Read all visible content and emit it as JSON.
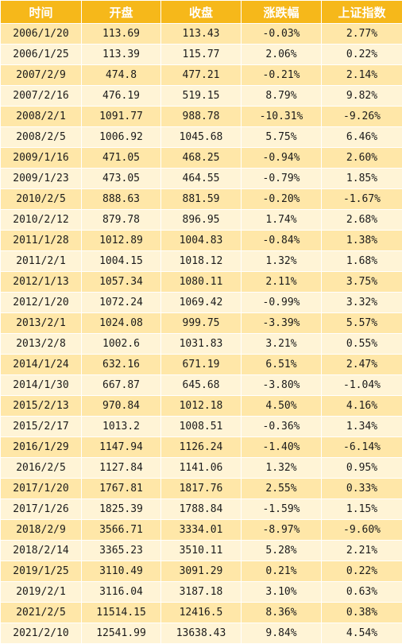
{
  "colors": {
    "header_bg": "#f6b81a",
    "header_text": "#ffffff",
    "row_odd": "#ffe7a8",
    "row_even": "#fff4d6"
  },
  "table": {
    "headers": [
      "时间",
      "开盘",
      "收盘",
      "涨跌幅",
      "上证指数"
    ],
    "rows": [
      [
        "2006/1/20",
        "113.69",
        "113.43",
        "-0.03%",
        "2.77%"
      ],
      [
        "2006/1/25",
        "113.39",
        "115.77",
        "2.06%",
        "0.22%"
      ],
      [
        "2007/2/9",
        "474.8",
        "477.21",
        "-0.21%",
        "2.14%"
      ],
      [
        "2007/2/16",
        "476.19",
        "519.15",
        "8.79%",
        "9.82%"
      ],
      [
        "2008/2/1",
        "1091.77",
        "988.78",
        "-10.31%",
        "-9.26%"
      ],
      [
        "2008/2/5",
        "1006.92",
        "1045.68",
        "5.75%",
        "6.46%"
      ],
      [
        "2009/1/16",
        "471.05",
        "468.25",
        "-0.94%",
        "2.60%"
      ],
      [
        "2009/1/23",
        "473.05",
        "464.55",
        "-0.79%",
        "1.85%"
      ],
      [
        "2010/2/5",
        "888.63",
        "881.59",
        "-0.20%",
        "-1.67%"
      ],
      [
        "2010/2/12",
        "879.78",
        "896.95",
        "1.74%",
        "2.68%"
      ],
      [
        "2011/1/28",
        "1012.89",
        "1004.83",
        "-0.84%",
        "1.38%"
      ],
      [
        "2011/2/1",
        "1004.15",
        "1018.12",
        "1.32%",
        "1.68%"
      ],
      [
        "2012/1/13",
        "1057.34",
        "1080.11",
        "2.11%",
        "3.75%"
      ],
      [
        "2012/1/20",
        "1072.24",
        "1069.42",
        "-0.99%",
        "3.32%"
      ],
      [
        "2013/2/1",
        "1024.08",
        "999.75",
        "-3.39%",
        "5.57%"
      ],
      [
        "2013/2/8",
        "1002.6",
        "1031.83",
        "3.21%",
        "0.55%"
      ],
      [
        "2014/1/24",
        "632.16",
        "671.19",
        "6.51%",
        "2.47%"
      ],
      [
        "2014/1/30",
        "667.87",
        "645.68",
        "-3.80%",
        "-1.04%"
      ],
      [
        "2015/2/13",
        "970.84",
        "1012.18",
        "4.50%",
        "4.16%"
      ],
      [
        "2015/2/17",
        "1013.2",
        "1008.51",
        "-0.36%",
        "1.34%"
      ],
      [
        "2016/1/29",
        "1147.94",
        "1126.24",
        "-1.40%",
        "-6.14%"
      ],
      [
        "2016/2/5",
        "1127.84",
        "1141.06",
        "1.32%",
        "0.95%"
      ],
      [
        "2017/1/20",
        "1767.81",
        "1817.76",
        "2.55%",
        "0.33%"
      ],
      [
        "2017/1/26",
        "1825.39",
        "1788.84",
        "-1.59%",
        "1.15%"
      ],
      [
        "2018/2/9",
        "3566.71",
        "3334.01",
        "-8.97%",
        "-9.60%"
      ],
      [
        "2018/2/14",
        "3365.23",
        "3510.11",
        "5.28%",
        "2.21%"
      ],
      [
        "2019/1/25",
        "3110.49",
        "3091.29",
        "0.21%",
        "0.22%"
      ],
      [
        "2019/2/1",
        "3116.04",
        "3187.18",
        "3.10%",
        "0.63%"
      ],
      [
        "2021/2/5",
        "11514.15",
        "12416.5",
        "8.36%",
        "0.38%"
      ],
      [
        "2021/2/10",
        "12541.99",
        "13638.43",
        "9.84%",
        "4.54%"
      ]
    ]
  }
}
